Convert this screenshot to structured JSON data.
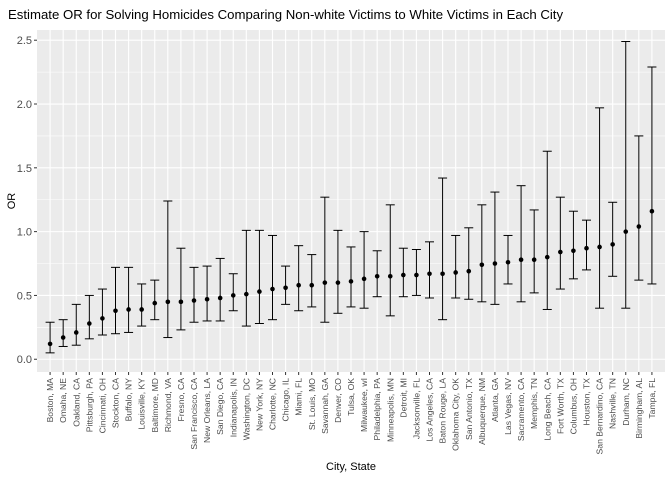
{
  "chart_data": {
    "type": "errorbar",
    "title": "Estimate OR for Solving Homicides Comparing Non-white Victims to White Victims in Each City",
    "xlabel": "City, State",
    "ylabel": "OR",
    "ylim": [
      -0.1,
      2.58
    ],
    "yticks": [
      0.0,
      0.5,
      1.0,
      1.5,
      2.0,
      2.5
    ],
    "ytick_labels": [
      "0.0",
      "0.5",
      "1.0",
      "1.5",
      "2.0",
      "2.5"
    ],
    "grid": true,
    "legend": "none",
    "colors": {
      "panel": "#ebebeb",
      "grid": "#ffffff",
      "mark": "#000000"
    },
    "categories": [
      "Boston, MA",
      "Omaha, NE",
      "Oakland, CA",
      "Pittsburgh, PA",
      "Cincinnati, OH",
      "Stockton, CA",
      "Buffalo, NY",
      "Louisville, KY",
      "Baltimore, MD",
      "Richmond, VA",
      "Fresno, CA",
      "San Francisco, CA",
      "New Orleans, LA",
      "San Diego, CA",
      "Indianapolis, IN",
      "Washington, DC",
      "New York, NY",
      "Charlotte, NC",
      "Chicago, IL",
      "Miami, FL",
      "St. Louis, MO",
      "Savannah, GA",
      "Denver, CO",
      "Tulsa, OK",
      "Milwaukee, wI",
      "Philadelphia, PA",
      "Minneapolis, MN",
      "Detroit, MI",
      "Jacksonville, FL",
      "Los Angeles, CA",
      "Baton Rouge, LA",
      "Oklahoma City, OK",
      "San Antonio, TX",
      "Albuquerque, NM",
      "Atlanta, GA",
      "Las Vegas, NV",
      "Sacramento, CA",
      "Memphis, TN",
      "Long Beach, CA",
      "Fort Worth, TX",
      "Columbus, OH",
      "Houston, TX",
      "San Bernardino, CA",
      "Nashville, TN",
      "Durham, NC",
      "Birmingham, AL",
      "Tampa, FL"
    ],
    "or": [
      0.12,
      0.17,
      0.21,
      0.28,
      0.32,
      0.38,
      0.39,
      0.39,
      0.44,
      0.45,
      0.45,
      0.46,
      0.47,
      0.48,
      0.5,
      0.51,
      0.53,
      0.55,
      0.56,
      0.58,
      0.58,
      0.6,
      0.6,
      0.61,
      0.63,
      0.65,
      0.65,
      0.66,
      0.66,
      0.67,
      0.67,
      0.68,
      0.69,
      0.74,
      0.75,
      0.76,
      0.78,
      0.78,
      0.8,
      0.84,
      0.85,
      0.87,
      0.88,
      0.9,
      1.0,
      1.04,
      1.16
    ],
    "ci_low": [
      0.05,
      0.1,
      0.11,
      0.16,
      0.19,
      0.2,
      0.21,
      0.26,
      0.31,
      0.17,
      0.23,
      0.29,
      0.3,
      0.3,
      0.38,
      0.26,
      0.28,
      0.31,
      0.43,
      0.38,
      0.41,
      0.29,
      0.36,
      0.41,
      0.4,
      0.49,
      0.34,
      0.49,
      0.5,
      0.48,
      0.31,
      0.48,
      0.47,
      0.45,
      0.43,
      0.59,
      0.45,
      0.52,
      0.39,
      0.55,
      0.63,
      0.7,
      0.4,
      0.65,
      0.4,
      0.62,
      0.59
    ],
    "ci_high": [
      0.29,
      0.31,
      0.43,
      0.5,
      0.55,
      0.72,
      0.72,
      0.59,
      0.62,
      1.24,
      0.87,
      0.72,
      0.73,
      0.79,
      0.67,
      1.01,
      1.01,
      0.97,
      0.73,
      0.89,
      0.82,
      1.27,
      1.01,
      0.88,
      1.0,
      0.85,
      1.21,
      0.87,
      0.86,
      0.92,
      1.42,
      0.97,
      1.03,
      1.21,
      1.31,
      0.97,
      1.36,
      1.17,
      1.63,
      1.27,
      1.16,
      1.09,
      1.97,
      1.23,
      2.49,
      1.75,
      2.29
    ]
  }
}
